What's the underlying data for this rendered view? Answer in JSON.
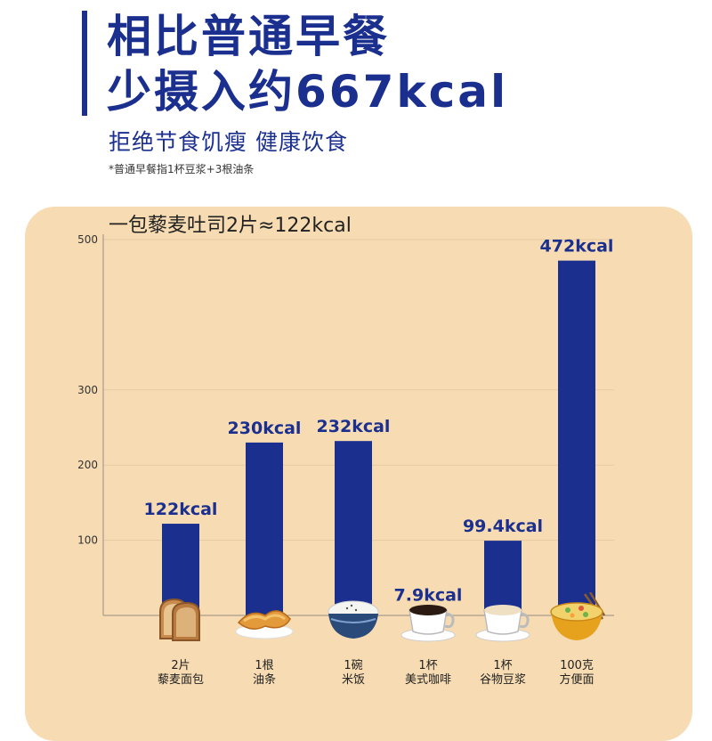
{
  "header": {
    "headline_line1": "相比普通早餐",
    "headline_line2": "少摄入约667kcal",
    "subheadline": "拒绝节食饥瘦 健康饮食",
    "footnote": "*普通早餐指1杯豆浆+3根油条"
  },
  "colors": {
    "brand_blue": "#1b2f8f",
    "panel_bg": "#f7dcb3"
  },
  "chart_data": {
    "type": "bar",
    "title": "一包藜麦吐司2片≈122kcal",
    "xlabel": "",
    "ylabel": "",
    "ylim": [
      0,
      500
    ],
    "yticks": [
      100,
      200,
      300,
      500
    ],
    "grid": true,
    "categories": [
      {
        "line1": "2片",
        "line2": "藜麦面包",
        "icon": "toast-slices-icon"
      },
      {
        "line1": "1根",
        "line2": "油条",
        "icon": "fried-dough-stick-icon"
      },
      {
        "line1": "1碗",
        "line2": "米饭",
        "icon": "rice-bowl-icon"
      },
      {
        "line1": "1杯",
        "line2": "美式咖啡",
        "icon": "coffee-cup-icon"
      },
      {
        "line1": "1杯",
        "line2": "谷物豆浆",
        "icon": "soy-milk-cup-icon"
      },
      {
        "line1": "100克",
        "line2": "方便面",
        "icon": "instant-noodles-icon"
      }
    ],
    "values": [
      122,
      230,
      232,
      7.9,
      99.4,
      472
    ],
    "value_labels": [
      "122kcal",
      "230kcal",
      "232kcal",
      "7.9kcal",
      "99.4kcal",
      "472kcal"
    ]
  }
}
